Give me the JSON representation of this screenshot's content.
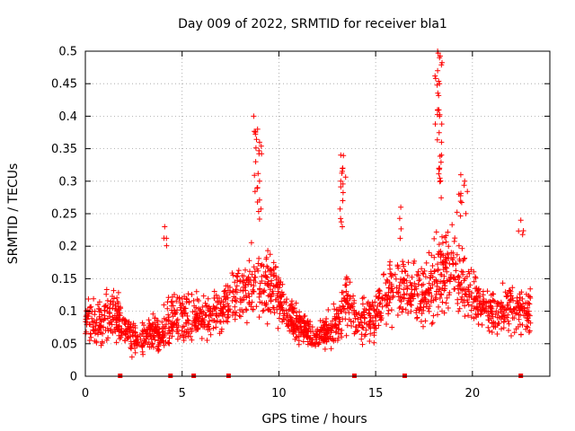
{
  "chart_data": {
    "type": "scatter",
    "title": "Day 009 of 2022, SRMTID for receiver bla1",
    "xlabel": "GPS time / hours",
    "ylabel": "SRMTID / TECUs",
    "xlim": [
      0,
      24
    ],
    "ylim": [
      0,
      0.5
    ],
    "xticks": [
      0,
      5,
      10,
      15,
      20
    ],
    "xtick_labels": [
      "0",
      "5",
      "10",
      "15",
      "20"
    ],
    "yticks": [
      0,
      0.05,
      0.1,
      0.15,
      0.2,
      0.25,
      0.3,
      0.35,
      0.4,
      0.45,
      0.5
    ],
    "ytick_labels": [
      "0",
      "0.05",
      "0.1",
      "0.15",
      "0.2",
      "0.25",
      "0.3",
      "0.35",
      "0.4",
      "0.45",
      "0.5"
    ],
    "grid": true,
    "series": [
      {
        "name": "SRMTID",
        "color": "#ff0000",
        "marker": "plus",
        "envelope_x": [
          0,
          0.5,
          1,
          1.5,
          2,
          2.5,
          3,
          3.5,
          4,
          4.5,
          5,
          5.5,
          6,
          6.5,
          7,
          7.5,
          8,
          8.5,
          9,
          9.5,
          10,
          10.5,
          11,
          11.5,
          12,
          12.5,
          13,
          13.5,
          14,
          14.5,
          15,
          15.5,
          16,
          16.5,
          17,
          17.5,
          18,
          18.5,
          19,
          19.5,
          20,
          20.5,
          21,
          21.5,
          22,
          22.5,
          23
        ],
        "envelope_mean": [
          0.09,
          0.08,
          0.09,
          0.1,
          0.07,
          0.06,
          0.06,
          0.07,
          0.07,
          0.09,
          0.09,
          0.09,
          0.09,
          0.09,
          0.1,
          0.12,
          0.13,
          0.14,
          0.15,
          0.15,
          0.12,
          0.09,
          0.08,
          0.07,
          0.06,
          0.07,
          0.08,
          0.12,
          0.08,
          0.09,
          0.1,
          0.12,
          0.14,
          0.13,
          0.13,
          0.12,
          0.14,
          0.16,
          0.16,
          0.14,
          0.12,
          0.11,
          0.09,
          0.1,
          0.11,
          0.1,
          0.1
        ],
        "envelope_spread": [
          0.04,
          0.04,
          0.05,
          0.05,
          0.03,
          0.03,
          0.03,
          0.04,
          0.04,
          0.05,
          0.05,
          0.05,
          0.04,
          0.04,
          0.05,
          0.06,
          0.06,
          0.07,
          0.08,
          0.07,
          0.05,
          0.04,
          0.03,
          0.03,
          0.03,
          0.03,
          0.04,
          0.06,
          0.04,
          0.04,
          0.05,
          0.06,
          0.07,
          0.06,
          0.06,
          0.06,
          0.07,
          0.08,
          0.07,
          0.06,
          0.05,
          0.05,
          0.04,
          0.04,
          0.05,
          0.05,
          0.05
        ],
        "peaks": [
          {
            "x": 8.7,
            "y": 0.4
          },
          {
            "x": 8.9,
            "y": 0.38
          },
          {
            "x": 9.0,
            "y": 0.36
          },
          {
            "x": 8.8,
            "y": 0.33
          },
          {
            "x": 9.0,
            "y": 0.3
          },
          {
            "x": 8.9,
            "y": 0.29
          },
          {
            "x": 13.2,
            "y": 0.34
          },
          {
            "x": 13.3,
            "y": 0.32
          },
          {
            "x": 13.2,
            "y": 0.3
          },
          {
            "x": 13.3,
            "y": 0.27
          },
          {
            "x": 18.2,
            "y": 0.5
          },
          {
            "x": 18.3,
            "y": 0.49
          },
          {
            "x": 18.2,
            "y": 0.47
          },
          {
            "x": 18.3,
            "y": 0.45
          },
          {
            "x": 18.2,
            "y": 0.41
          },
          {
            "x": 18.3,
            "y": 0.4
          },
          {
            "x": 18.4,
            "y": 0.36
          },
          {
            "x": 18.4,
            "y": 0.34
          },
          {
            "x": 18.3,
            "y": 0.32
          },
          {
            "x": 19.4,
            "y": 0.31
          },
          {
            "x": 19.6,
            "y": 0.3
          },
          {
            "x": 19.3,
            "y": 0.28
          },
          {
            "x": 4.1,
            "y": 0.23
          },
          {
            "x": 16.3,
            "y": 0.26
          },
          {
            "x": 22.5,
            "y": 0.24
          }
        ]
      }
    ],
    "bottom_markers_x": [
      1.8,
      4.4,
      5.6,
      7.4,
      13.9,
      16.5,
      22.5
    ]
  }
}
